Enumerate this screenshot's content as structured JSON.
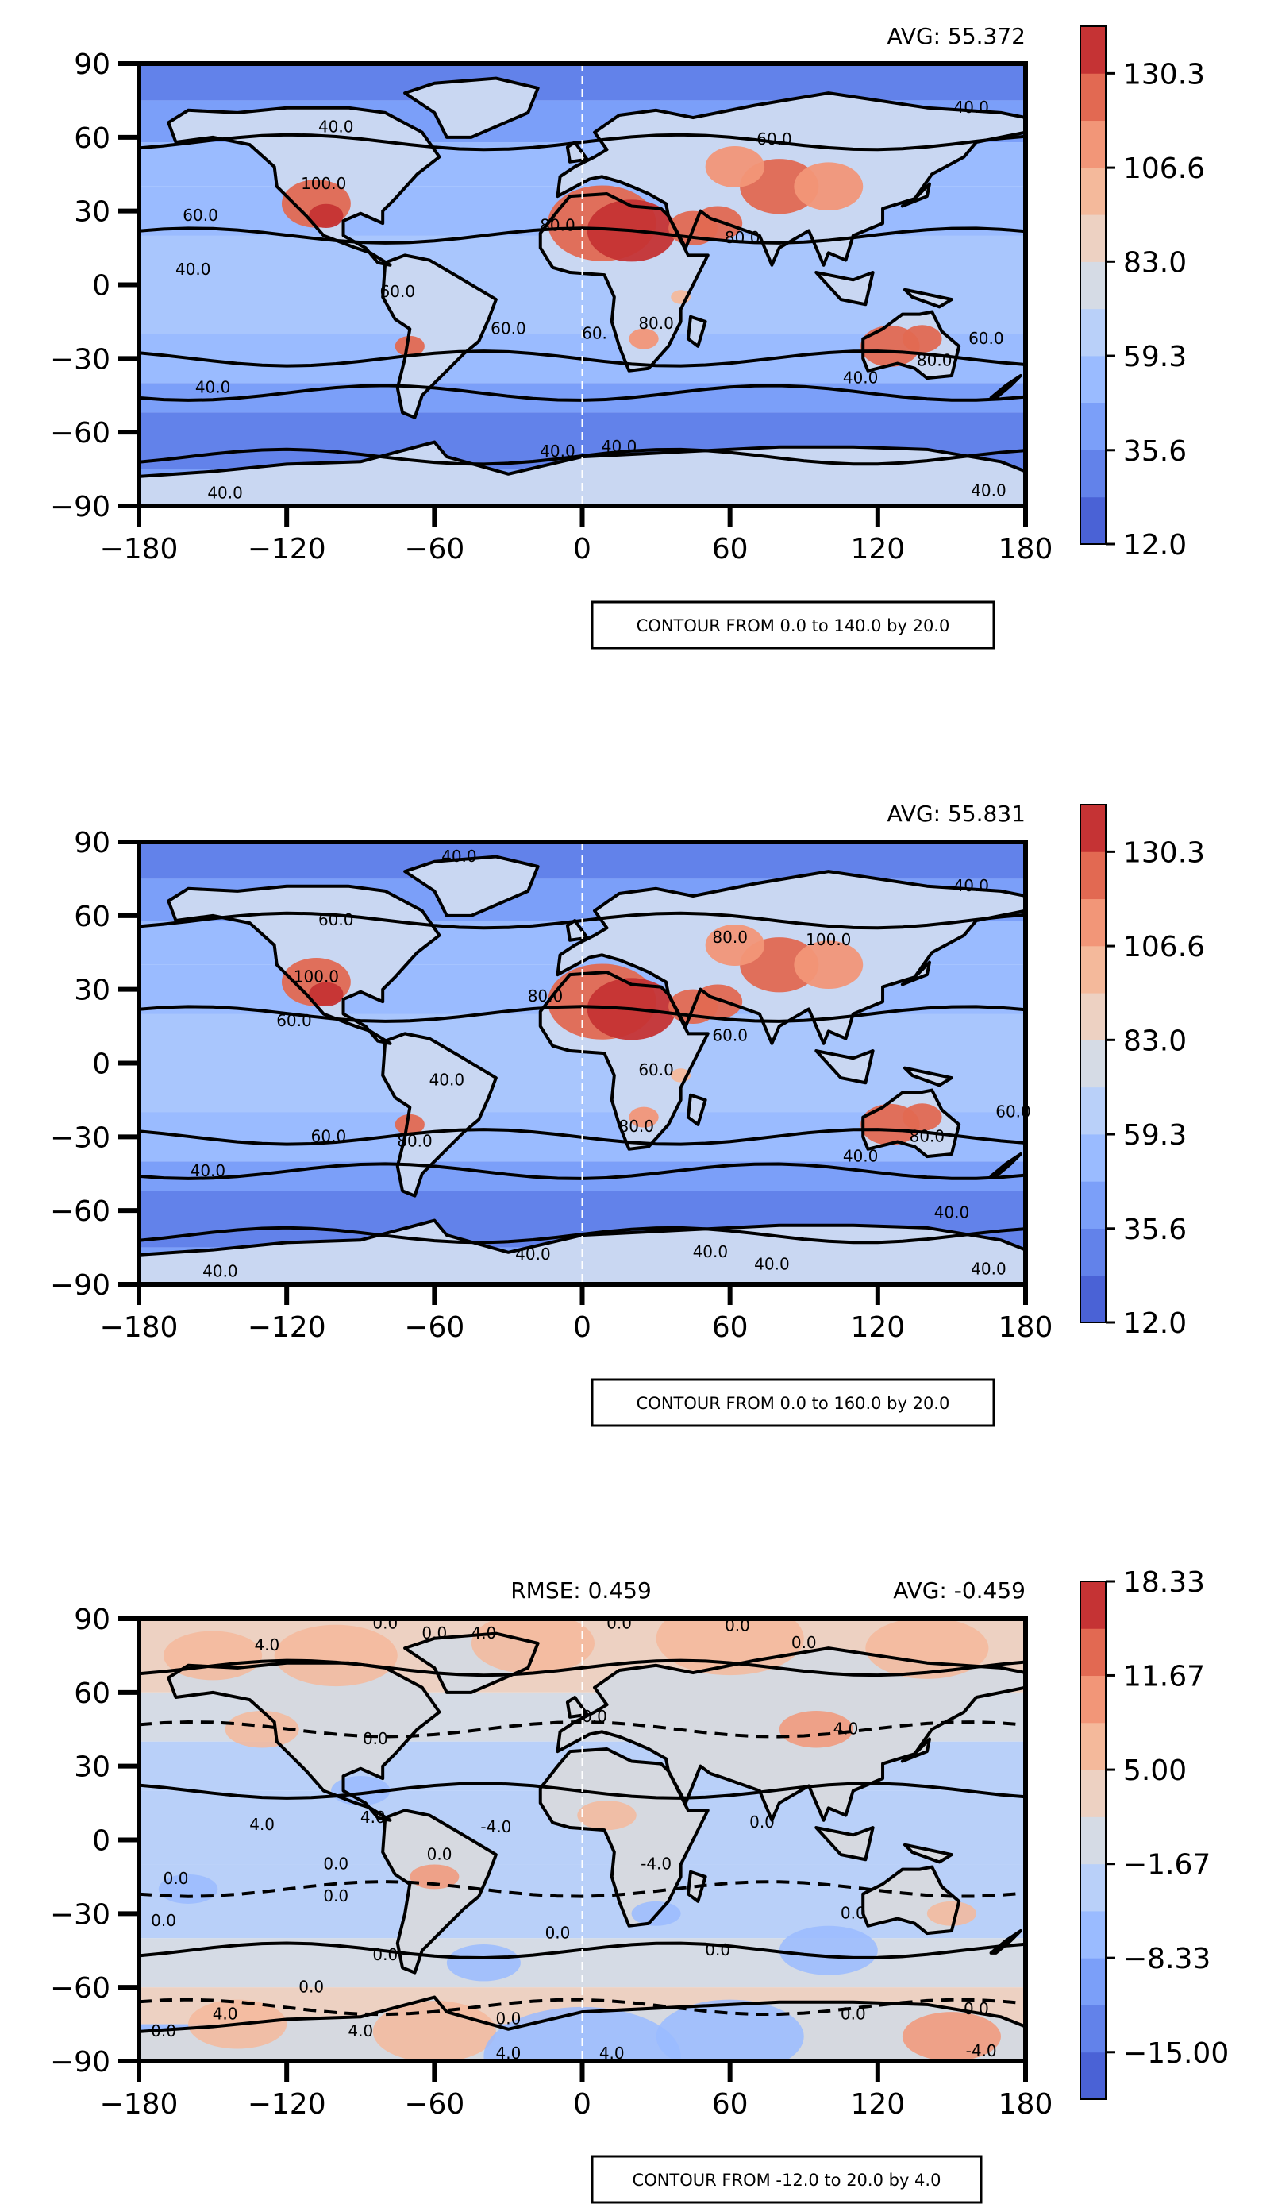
{
  "chart_data": [
    {
      "type": "heatmap",
      "panel": "top",
      "avg_label": "AVG: 55.372",
      "rmse_label": "",
      "footer": "CONTOUR FROM 0.0 to 140.0 by 20.0",
      "xlim": [
        -180,
        180
      ],
      "ylim": [
        -90,
        90
      ],
      "x_ticks": [
        "−180",
        "−120",
        "−60",
        "0",
        "60",
        "120",
        "180"
      ],
      "y_ticks": [
        "90",
        "60",
        "30",
        "0",
        "−30",
        "−60",
        "−90"
      ],
      "colorbar": {
        "range": [
          12.0,
          142.15
        ],
        "tick_labels": [
          "130.3",
          "106.6",
          "83.0",
          "59.3",
          "35.6",
          "12.0"
        ],
        "tick_values": [
          130.3,
          106.6,
          83.0,
          59.3,
          35.6,
          12.0
        ]
      },
      "contour_labels": [
        {
          "lon": -150,
          "lat": -44,
          "text": "40.0"
        },
        {
          "lon": -158,
          "lat": 4,
          "text": "40.0"
        },
        {
          "lon": -155,
          "lat": 26,
          "text": "60.0"
        },
        {
          "lon": -105,
          "lat": 39,
          "text": "100.0"
        },
        {
          "lon": -100,
          "lat": 62,
          "text": "40.0"
        },
        {
          "lon": -75,
          "lat": -5,
          "text": "60.0"
        },
        {
          "lon": -30,
          "lat": -20,
          "text": "60.0"
        },
        {
          "lon": 5,
          "lat": -22,
          "text": "60."
        },
        {
          "lon": 30,
          "lat": -18,
          "text": "80.0"
        },
        {
          "lon": -10,
          "lat": 22,
          "text": "80.0"
        },
        {
          "lon": 65,
          "lat": 17,
          "text": "80.0"
        },
        {
          "lon": 78,
          "lat": 57,
          "text": "60.0"
        },
        {
          "lon": 158,
          "lat": 70,
          "text": "40.0"
        },
        {
          "lon": 113,
          "lat": -40,
          "text": "40.0"
        },
        {
          "lon": 143,
          "lat": -33,
          "text": "80.0"
        },
        {
          "lon": 164,
          "lat": -24,
          "text": "60.0"
        },
        {
          "lon": -10,
          "lat": -70,
          "text": "40.0"
        },
        {
          "lon": 15,
          "lat": -68,
          "text": "40.0"
        },
        {
          "lon": -145,
          "lat": -87,
          "text": "40.0"
        },
        {
          "lon": 165,
          "lat": -86,
          "text": "40.0"
        }
      ]
    },
    {
      "type": "heatmap",
      "panel": "middle",
      "avg_label": "AVG: 55.831",
      "rmse_label": "",
      "footer": "CONTOUR FROM 0.0 to 160.0 by 20.0",
      "xlim": [
        -180,
        180
      ],
      "ylim": [
        -90,
        90
      ],
      "x_ticks": [
        "−180",
        "−120",
        "−60",
        "0",
        "60",
        "120",
        "180"
      ],
      "y_ticks": [
        "90",
        "60",
        "30",
        "0",
        "−30",
        "−60",
        "−90"
      ],
      "colorbar": {
        "range": [
          12.0,
          142.15
        ],
        "tick_labels": [
          "130.3",
          "106.6",
          "83.0",
          "59.3",
          "35.6",
          "12.0"
        ],
        "tick_values": [
          130.3,
          106.6,
          83.0,
          59.3,
          35.6,
          12.0
        ]
      },
      "contour_labels": [
        {
          "lon": -50,
          "lat": 82,
          "text": "40.0"
        },
        {
          "lon": -100,
          "lat": 56,
          "text": "60.0"
        },
        {
          "lon": -108,
          "lat": 33,
          "text": "100.0"
        },
        {
          "lon": -117,
          "lat": 15,
          "text": "60.0"
        },
        {
          "lon": -55,
          "lat": -9,
          "text": "40.0"
        },
        {
          "lon": -103,
          "lat": -32,
          "text": "60.0"
        },
        {
          "lon": -152,
          "lat": -46,
          "text": "40.0"
        },
        {
          "lon": -68,
          "lat": -34,
          "text": "80.0"
        },
        {
          "lon": 60,
          "lat": 49,
          "text": "80.0"
        },
        {
          "lon": 100,
          "lat": 48,
          "text": "100.0"
        },
        {
          "lon": -15,
          "lat": 25,
          "text": "80.0"
        },
        {
          "lon": 60,
          "lat": 9,
          "text": "60.0"
        },
        {
          "lon": 30,
          "lat": -5,
          "text": "60.0"
        },
        {
          "lon": 22,
          "lat": -28,
          "text": "80.0"
        },
        {
          "lon": 140,
          "lat": -32,
          "text": "80.0"
        },
        {
          "lon": 175,
          "lat": -22,
          "text": "60.0"
        },
        {
          "lon": 113,
          "lat": -40,
          "text": "40.0"
        },
        {
          "lon": 150,
          "lat": -63,
          "text": "40.0"
        },
        {
          "lon": 158,
          "lat": 70,
          "text": "40.0"
        },
        {
          "lon": -20,
          "lat": -80,
          "text": "40.0"
        },
        {
          "lon": 52,
          "lat": -79,
          "text": "40.0"
        },
        {
          "lon": 77,
          "lat": -84,
          "text": "40.0"
        },
        {
          "lon": -147,
          "lat": -87,
          "text": "40.0"
        },
        {
          "lon": 165,
          "lat": -86,
          "text": "40.0"
        }
      ]
    },
    {
      "type": "heatmap",
      "panel": "bottom",
      "avg_label": "AVG: -0.459",
      "rmse_label": "RMSE: 0.459",
      "footer": "CONTOUR FROM -12.0 to 20.0 by 4.0",
      "xlim": [
        -180,
        180
      ],
      "ylim": [
        -90,
        90
      ],
      "x_ticks": [
        "−180",
        "−120",
        "−60",
        "0",
        "60",
        "120",
        "180"
      ],
      "y_ticks": [
        "90",
        "60",
        "30",
        "0",
        "−30",
        "−60",
        "−90"
      ],
      "colorbar": {
        "range": [
          -18.33,
          18.33
        ],
        "tick_labels": [
          "18.33",
          "11.67",
          "5.00",
          "−1.67",
          "−8.33",
          "−15.00"
        ],
        "tick_values": [
          18.33,
          11.67,
          5.0,
          -1.67,
          -8.33,
          -15.0
        ]
      },
      "contour_labels": [
        {
          "lon": -80,
          "lat": 86,
          "text": "0.0"
        },
        {
          "lon": -60,
          "lat": 82,
          "text": "0.0"
        },
        {
          "lon": -40,
          "lat": 82,
          "text": "4.0"
        },
        {
          "lon": 15,
          "lat": 86,
          "text": "0.0"
        },
        {
          "lon": 63,
          "lat": 85,
          "text": "0.0"
        },
        {
          "lon": 90,
          "lat": 78,
          "text": "0.0"
        },
        {
          "lon": -128,
          "lat": 77,
          "text": "4.0"
        },
        {
          "lon": -84,
          "lat": 39,
          "text": "0.0"
        },
        {
          "lon": 5,
          "lat": 48,
          "text": "0.0"
        },
        {
          "lon": 107,
          "lat": 43,
          "text": "4.0"
        },
        {
          "lon": -130,
          "lat": 4,
          "text": "4.0"
        },
        {
          "lon": -85,
          "lat": 7,
          "text": "4.0"
        },
        {
          "lon": -35,
          "lat": 3,
          "text": "-4.0"
        },
        {
          "lon": -100,
          "lat": -12,
          "text": "0.0"
        },
        {
          "lon": -58,
          "lat": -8,
          "text": "0.0"
        },
        {
          "lon": 73,
          "lat": 5,
          "text": "0.0"
        },
        {
          "lon": 30,
          "lat": -12,
          "text": "-4.0"
        },
        {
          "lon": -165,
          "lat": -18,
          "text": "0.0"
        },
        {
          "lon": -100,
          "lat": -25,
          "text": "0.0"
        },
        {
          "lon": -170,
          "lat": -35,
          "text": "0.0"
        },
        {
          "lon": -80,
          "lat": -49,
          "text": "0.0"
        },
        {
          "lon": -10,
          "lat": -40,
          "text": "0.0"
        },
        {
          "lon": 110,
          "lat": -32,
          "text": "0.0"
        },
        {
          "lon": 55,
          "lat": -47,
          "text": "0.0"
        },
        {
          "lon": -110,
          "lat": -62,
          "text": "0.0"
        },
        {
          "lon": -30,
          "lat": -75,
          "text": "0.0"
        },
        {
          "lon": -145,
          "lat": -73,
          "text": "4.0"
        },
        {
          "lon": -170,
          "lat": -80,
          "text": "0.0"
        },
        {
          "lon": -90,
          "lat": -80,
          "text": "4.0"
        },
        {
          "lon": -30,
          "lat": -89,
          "text": "4.0"
        },
        {
          "lon": 12,
          "lat": -89,
          "text": "4.0"
        },
        {
          "lon": 110,
          "lat": -73,
          "text": "0.0"
        },
        {
          "lon": 160,
          "lat": -71,
          "text": "0.0"
        },
        {
          "lon": 162,
          "lat": -88,
          "text": "-4.0"
        }
      ]
    }
  ]
}
